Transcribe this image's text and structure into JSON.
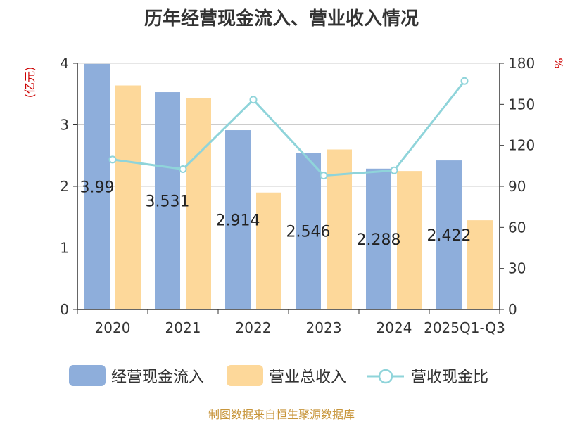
{
  "chart_data": {
    "type": "bar",
    "title": "历年经营现金流入、营业收入情况",
    "categories": [
      "2020",
      "2021",
      "2022",
      "2023",
      "2024",
      "2025Q1-Q3"
    ],
    "left_axis": {
      "unit": "(亿元)",
      "ylim": [
        0,
        4
      ],
      "ticks": [
        "0",
        "1",
        "2",
        "3",
        "4"
      ]
    },
    "right_axis": {
      "unit": "%",
      "ylim": [
        0,
        180
      ],
      "ticks": [
        "0",
        "30",
        "60",
        "90",
        "120",
        "150",
        "180"
      ]
    },
    "grid": true,
    "legend_position": "bottom",
    "series": [
      {
        "name": "经营现金流入",
        "type": "bar",
        "axis": "left",
        "color": "#8eaedb",
        "values": [
          3.99,
          3.531,
          2.914,
          2.546,
          2.288,
          2.422
        ],
        "labels": [
          "3.99",
          "3.531",
          "2.914",
          "2.546",
          "2.288",
          "2.422"
        ]
      },
      {
        "name": "营业总收入",
        "type": "bar",
        "axis": "left",
        "color": "#fdd89a",
        "values": [
          3.64,
          3.44,
          1.9,
          2.6,
          2.25,
          1.45
        ]
      },
      {
        "name": "营收现金比",
        "type": "line",
        "axis": "right",
        "color": "#8fd4da",
        "values": [
          109.6,
          102.6,
          153.4,
          97.9,
          101.7,
          167.0
        ]
      }
    ]
  },
  "source": "制图数据来自恒生聚源数据库"
}
